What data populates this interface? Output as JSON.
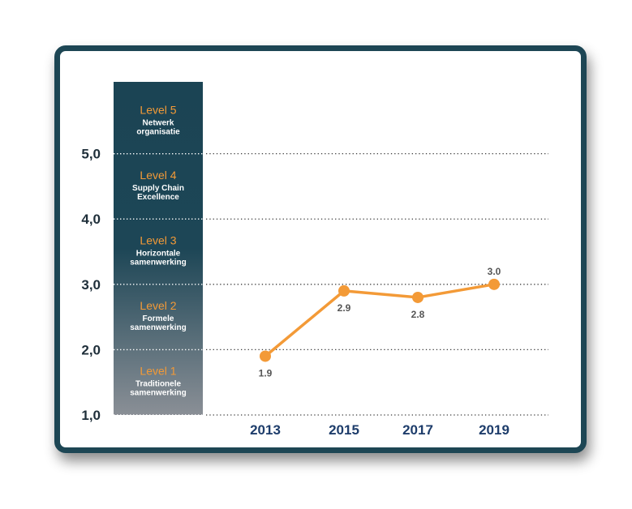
{
  "chart_data": {
    "type": "line",
    "x": [
      "2013",
      "2015",
      "2017",
      "2019"
    ],
    "series": [
      {
        "values": [
          1.9,
          2.9,
          2.8,
          3.0
        ],
        "data_labels": [
          "1.9",
          "2.9",
          "2.8",
          "3.0"
        ]
      }
    ],
    "y_ticks": [
      "1,0",
      "2,0",
      "3,0",
      "4,0",
      "5,0"
    ],
    "ylim": [
      1.0,
      6.1
    ],
    "grid": "horizontal dotted",
    "line_color": "#f39a37",
    "levels": [
      {
        "title": "Level 1",
        "desc": [
          "Traditionele",
          "samenwerking"
        ]
      },
      {
        "title": "Level 2",
        "desc": [
          "Formele",
          "samenwerking"
        ]
      },
      {
        "title": "Level 3",
        "desc": [
          "Horizontale",
          "samenwerking"
        ]
      },
      {
        "title": "Level 4",
        "desc": [
          "Supply Chain",
          "Excellence"
        ]
      },
      {
        "title": "Level 5",
        "desc": [
          "Netwerk",
          "organisatie"
        ]
      }
    ],
    "level_colors": {
      "top": "#1b4454",
      "bottom": "#8a8f96",
      "title": "#f39a37",
      "text": "#ffffff"
    }
  }
}
